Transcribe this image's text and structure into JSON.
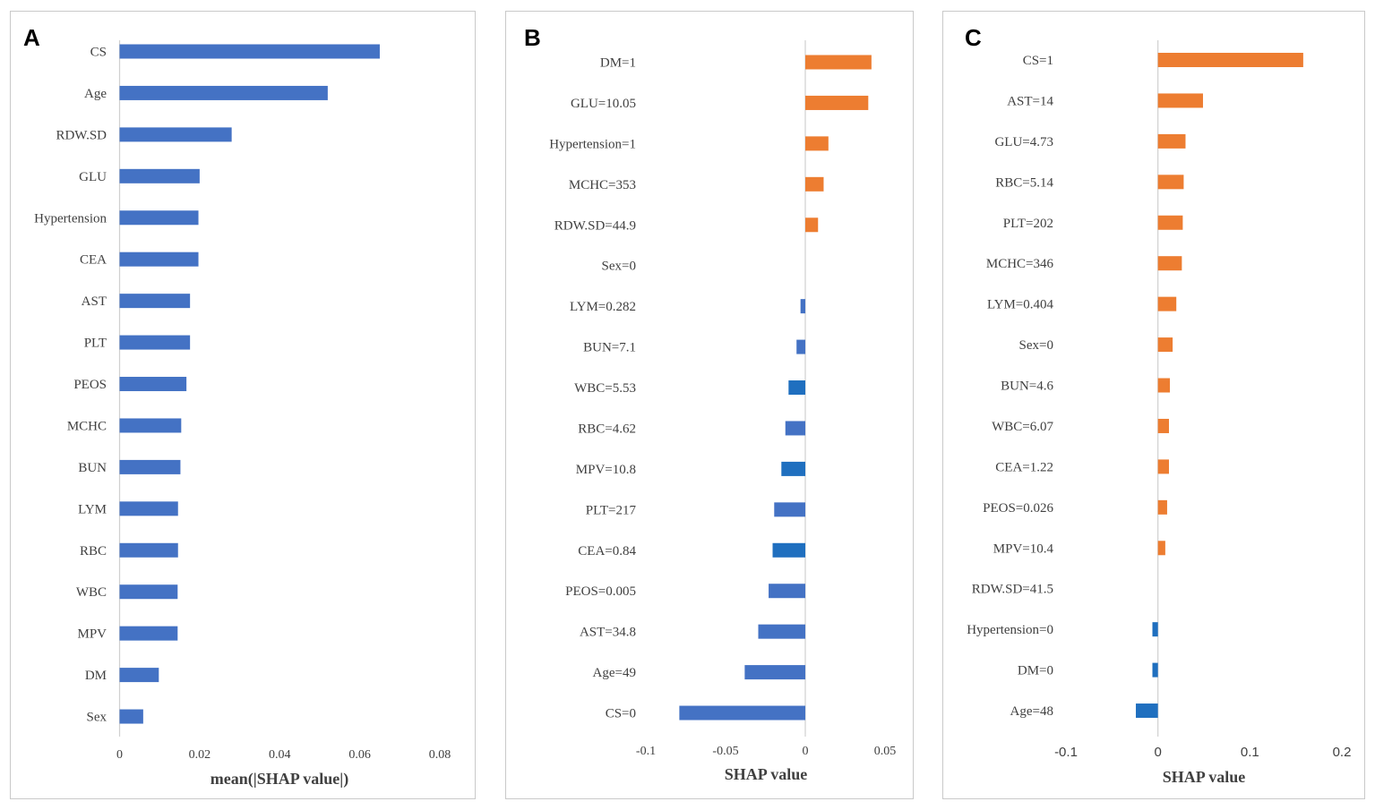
{
  "colors": {
    "blue": "#4472c4",
    "blue_dark": "#1f6fbf",
    "orange": "#ed7d31",
    "axis": "#d0d0d0"
  },
  "chart_data": [
    {
      "panel": "A",
      "type": "bar",
      "orientation": "horizontal",
      "title": "",
      "xlabel": "mean(|SHAP value|)",
      "ylabel": "",
      "xlim": [
        0,
        0.08
      ],
      "xticks": [
        0,
        0.02,
        0.04,
        0.06,
        0.08
      ],
      "xtick_labels": [
        "0",
        "0.02",
        "0.04",
        "0.06",
        "0.08"
      ],
      "categories": [
        "CS",
        "Age",
        "RDW.SD",
        "GLU",
        "Hypertension",
        "CEA",
        "AST",
        "PLT",
        "PEOS",
        "MCHC",
        "BUN",
        "LYM",
        "RBC",
        "WBC",
        "MPV",
        "DM",
        "Sex"
      ],
      "values": [
        0.065,
        0.052,
        0.028,
        0.02,
        0.0197,
        0.0197,
        0.0176,
        0.0176,
        0.0167,
        0.0154,
        0.0152,
        0.0146,
        0.0146,
        0.0145,
        0.0145,
        0.0098,
        0.0059
      ]
    },
    {
      "panel": "B",
      "type": "bar",
      "orientation": "horizontal",
      "title": "",
      "xlabel": "SHAP value",
      "ylabel": "",
      "xlim": [
        -0.1,
        0.05
      ],
      "xticks": [
        -0.1,
        -0.05,
        0,
        0.05
      ],
      "xtick_labels": [
        "-0.1",
        "-0.05",
        "0",
        "0.05"
      ],
      "categories": [
        "DM=1",
        "GLU=10.05",
        "Hypertension=1",
        "MCHC=353",
        "RDW.SD=44.9",
        "Sex=0",
        "LYM=0.282",
        "BUN=7.1",
        "WBC=5.53",
        "RBC=4.62",
        "MPV=10.8",
        "PLT=217",
        "CEA=0.84",
        "PEOS=0.005",
        "AST=34.8",
        "Age=49",
        "CS=0"
      ],
      "values": [
        0.0415,
        0.0395,
        0.0145,
        0.0115,
        0.008,
        0,
        -0.003,
        -0.0055,
        -0.0105,
        -0.0125,
        -0.015,
        -0.0195,
        -0.0205,
        -0.023,
        -0.0295,
        -0.038,
        -0.079
      ]
    },
    {
      "panel": "C",
      "type": "bar",
      "orientation": "horizontal",
      "title": "",
      "xlabel": "SHAP value",
      "ylabel": "",
      "xlim": [
        -0.1,
        0.2
      ],
      "xticks": [
        -0.1,
        0,
        0.1,
        0.2
      ],
      "xtick_labels": [
        "-0.1",
        "0",
        "0.1",
        "0.2"
      ],
      "categories": [
        "CS=1",
        "AST=14",
        "GLU=4.73",
        "RBC=5.14",
        "PLT=202",
        "MCHC=346",
        "LYM=0.404",
        "Sex=0",
        "BUN=4.6",
        "WBC=6.07",
        "CEA=1.22",
        "PEOS=0.026",
        "MPV=10.4",
        "RDW.SD=41.5",
        "Hypertension=0",
        "DM=0",
        "Age=48"
      ],
      "values": [
        0.158,
        0.049,
        0.03,
        0.028,
        0.027,
        0.026,
        0.02,
        0.016,
        0.013,
        0.012,
        0.012,
        0.01,
        0.008,
        0,
        -0.006,
        -0.006,
        -0.024
      ]
    }
  ]
}
